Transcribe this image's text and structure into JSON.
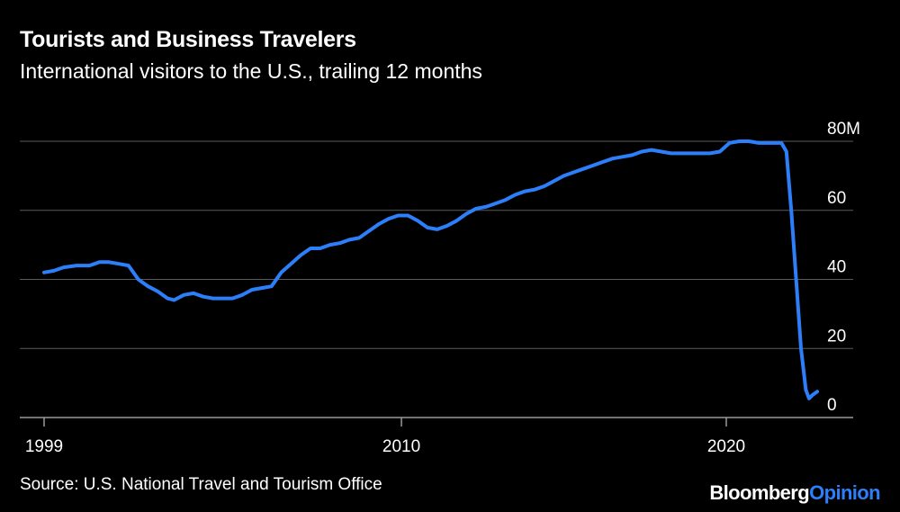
{
  "header": {
    "title": "Tourists and Business Travelers",
    "subtitle": "International visitors to the U.S., trailing 12 months"
  },
  "footer": {
    "source": "Source: U.S. National Travel and Tourism Office",
    "brand_primary": "Bloomberg",
    "brand_secondary": "Opinion"
  },
  "colors": {
    "background": "#000000",
    "line": "#2d7ff9",
    "grid": "#5a5a5a",
    "text": "#ffffff",
    "brand_accent": "#2d7ff9"
  },
  "chart_data": {
    "type": "line",
    "title": "Tourists and Business Travelers",
    "subtitle": "International visitors to the U.S., trailing 12 months",
    "xlabel": "",
    "ylabel": "",
    "xlim": [
      1999,
      2022.3
    ],
    "ylim": [
      0,
      80
    ],
    "grid": true,
    "y_axis_side": "right",
    "y_ticks": [
      {
        "value": 0,
        "label": "0"
      },
      {
        "value": 20,
        "label": "20"
      },
      {
        "value": 40,
        "label": "40"
      },
      {
        "value": 60,
        "label": "60"
      },
      {
        "value": 80,
        "label": "80M"
      }
    ],
    "x_ticks": [
      {
        "value": 1999,
        "label": "1999"
      },
      {
        "value": 2010,
        "label": "2010"
      },
      {
        "value": 2020,
        "label": "2020"
      }
    ],
    "series": [
      {
        "values": [
          [
            1999.0,
            42.0
          ],
          [
            1999.3,
            42.5
          ],
          [
            1999.6,
            43.5
          ],
          [
            2000.0,
            44.0
          ],
          [
            2000.4,
            44.0
          ],
          [
            2000.7,
            45.0
          ],
          [
            2001.0,
            45.0
          ],
          [
            2001.3,
            44.5
          ],
          [
            2001.6,
            44.0
          ],
          [
            2001.9,
            40.0
          ],
          [
            2002.2,
            38.0
          ],
          [
            2002.5,
            36.5
          ],
          [
            2002.8,
            34.5
          ],
          [
            2003.0,
            34.0
          ],
          [
            2003.3,
            35.5
          ],
          [
            2003.6,
            36.0
          ],
          [
            2003.9,
            35.0
          ],
          [
            2004.2,
            34.5
          ],
          [
            2004.5,
            34.5
          ],
          [
            2004.8,
            34.5
          ],
          [
            2005.1,
            35.5
          ],
          [
            2005.4,
            37.0
          ],
          [
            2005.7,
            37.5
          ],
          [
            2006.0,
            38.0
          ],
          [
            2006.3,
            42.0
          ],
          [
            2006.6,
            44.5
          ],
          [
            2006.9,
            47.0
          ],
          [
            2007.2,
            49.0
          ],
          [
            2007.5,
            49.0
          ],
          [
            2007.8,
            50.0
          ],
          [
            2008.1,
            50.5
          ],
          [
            2008.4,
            51.5
          ],
          [
            2008.7,
            52.0
          ],
          [
            2009.0,
            54.0
          ],
          [
            2009.3,
            56.0
          ],
          [
            2009.6,
            57.5
          ],
          [
            2009.9,
            58.5
          ],
          [
            2010.2,
            58.5
          ],
          [
            2010.5,
            57.0
          ],
          [
            2010.8,
            55.0
          ],
          [
            2011.1,
            54.5
          ],
          [
            2011.4,
            55.5
          ],
          [
            2011.7,
            57.0
          ],
          [
            2012.0,
            59.0
          ],
          [
            2012.3,
            60.5
          ],
          [
            2012.6,
            61.0
          ],
          [
            2012.9,
            62.0
          ],
          [
            2013.2,
            63.0
          ],
          [
            2013.5,
            64.5
          ],
          [
            2013.8,
            65.5
          ],
          [
            2014.1,
            66.0
          ],
          [
            2014.4,
            67.0
          ],
          [
            2014.7,
            68.5
          ],
          [
            2015.0,
            70.0
          ],
          [
            2015.3,
            71.0
          ],
          [
            2015.6,
            72.0
          ],
          [
            2015.9,
            73.0
          ],
          [
            2016.2,
            74.0
          ],
          [
            2016.5,
            75.0
          ],
          [
            2016.8,
            75.5
          ],
          [
            2017.1,
            76.0
          ],
          [
            2017.4,
            77.0
          ],
          [
            2017.7,
            77.5
          ],
          [
            2018.0,
            77.0
          ],
          [
            2018.3,
            76.5
          ],
          [
            2018.6,
            76.5
          ],
          [
            2018.9,
            76.5
          ],
          [
            2019.2,
            76.5
          ],
          [
            2019.5,
            76.5
          ],
          [
            2019.8,
            77.0
          ],
          [
            2020.1,
            79.5
          ],
          [
            2020.4,
            80.0
          ],
          [
            2020.7,
            80.0
          ],
          [
            2021.0,
            79.5
          ],
          [
            2021.3,
            79.5
          ],
          [
            2021.5,
            79.5
          ],
          [
            2021.7,
            79.5
          ],
          [
            2021.85,
            77.0
          ],
          [
            2022.0,
            60.0
          ],
          [
            2022.15,
            40.0
          ],
          [
            2022.3,
            20.0
          ],
          [
            2022.45,
            8.0
          ],
          [
            2022.55,
            5.5
          ],
          [
            2022.65,
            6.5
          ],
          [
            2022.8,
            7.5
          ]
        ]
      }
    ]
  }
}
